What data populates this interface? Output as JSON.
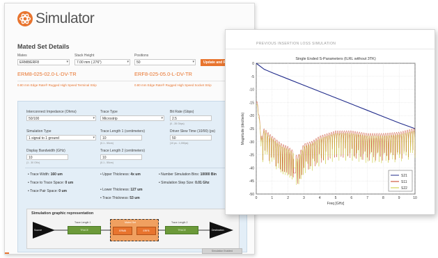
{
  "app": {
    "name": "Simulator",
    "brand_color": "#e8742e"
  },
  "form": {
    "section_title": "Mated Set Details",
    "mates_label": "Mates",
    "mates_value": "ERM8/ERF8",
    "stack_label": "Stack Height",
    "stack_value": "7.00 mm (.276\")",
    "positions_label": "Positions",
    "positions_value": "50",
    "action_label": "Update and Rese",
    "part_left": "ERM8-025-02.0-L-DV-TR",
    "part_right": "ERF8-025-05.0-L-DV-TR",
    "desc_left": "0.80 mm Edge Rate® Rugged High Speed Terminal Strip",
    "desc_right": "0.80 mm Edge Rate® Rugged High Speed Socket Strip"
  },
  "params": {
    "impedance_label": "Interconnect Impedance (Ohms)",
    "impedance_value": "50/100",
    "trace_type_label": "Trace Type",
    "trace_type_value": "Microstrip",
    "bit_rate_label": "Bit Rate (Gbps)",
    "bit_rate_value": "2.5",
    "bit_rate_hint": "(0 - 28 Gbps)",
    "sim_type_label": "Simulation Type",
    "sim_type_value": "1 signal to 1 ground",
    "trace_len1_label": "Trace Length 1 (centimeters)",
    "trace_len1_value": "10",
    "trace_len1_hint": "(0.1 - 50cm)",
    "driver_label": "Driver Slew Time (10/90) (ps)",
    "driver_value": "50",
    "driver_hint": "(10 ps - 1,000ps)",
    "bandwidth_label": "Display Bandwidth (GHz)",
    "bandwidth_value": "10",
    "bandwidth_hint": "(1 - 30 GHz)",
    "trace_len2_label": "Trace Length 2 (centimeters)",
    "trace_len2_value": "10",
    "trace_len2_hint": "(0.1 - 50cm)"
  },
  "stats": {
    "trace_width_label": "Trace Width:",
    "trace_width_value": "160 um",
    "trace_to_trace_label": "Trace to Trace Space:",
    "trace_to_trace_value": "0 um",
    "trace_pair_label": "Trace Pair Space:",
    "trace_pair_value": "0 um",
    "upper_label": "Upper Thickness:",
    "upper_value": "4x um",
    "lower_label": "Lower Thickness:",
    "lower_value": "127 um",
    "trace_thick_label": "Trace Thickness:",
    "trace_thick_value": "53 um",
    "sim_bins_label": "Number Simulation Bins:",
    "sim_bins_value": "10000 Bin",
    "step_label": "Simulation Step Size:",
    "step_value": "0.01 Ghz"
  },
  "graphic": {
    "title": "Simulation graphic representation",
    "source_label": "Source",
    "dest_label": "Destination",
    "trace1_label": "Trace Length 1",
    "trace2_label": "Trace Length 2",
    "trace1_box": "TRACE",
    "trace2_box": "TRACE",
    "center_label": "Mated Set",
    "erm_box": "ERM8",
    "erf_box": "ERF8",
    "button_label": "Simulation Enabled"
  },
  "chart_window": {
    "header": "PREVIOUS INSERTION LOSS SIMULATION"
  },
  "chart_data": {
    "type": "line",
    "title": "Single Ended S-Parameters (ILRL without 3TK)",
    "xlabel": "Freq [GHz]",
    "ylabel": "Magnitude (decibels)",
    "xlim": [
      0,
      10
    ],
    "ylim": [
      -50,
      0
    ],
    "xticks": [
      "0",
      "1",
      "2",
      "3",
      "4",
      "5",
      "6",
      "7",
      "8",
      "9",
      "10"
    ],
    "yticks": [
      "0",
      "-5",
      "-10",
      "-15",
      "-20",
      "-25",
      "-30",
      "-35",
      "-40",
      "-45",
      "-50"
    ],
    "grid": true,
    "legend_position": "bottom-right",
    "series": [
      {
        "name": "S21",
        "color": "#1f2a8a",
        "description": "insertion loss",
        "x": [
          0,
          0.5,
          1,
          2,
          3,
          4,
          5,
          6,
          7,
          8,
          9,
          10
        ],
        "y": [
          0,
          -2.3,
          -3.6,
          -6.0,
          -8.4,
          -10.8,
          -13.2,
          -15.6,
          -18.0,
          -20.4,
          -22.8,
          -25.0
        ]
      },
      {
        "name": "S11",
        "color": "#c43a1a",
        "x": [
          0,
          0.15,
          0.3,
          0.5,
          0.8,
          1.2,
          1.6,
          2.0,
          2.4,
          2.6,
          3.0,
          3.5,
          4.0,
          5.0,
          6.0,
          7.0,
          8.0,
          9.0,
          10.0
        ],
        "y": [
          -14,
          -19,
          -28,
          -24,
          -26,
          -28,
          -30,
          -31,
          -33,
          -35,
          -30,
          -29,
          -27,
          -25,
          -25,
          -26,
          -26,
          -25.5,
          -24
        ]
      },
      {
        "name": "S22",
        "color": "#c8c830",
        "x": [
          0,
          0.15,
          0.3,
          0.5,
          0.8,
          1.2,
          1.6,
          2.0,
          2.4,
          2.6,
          3.0,
          3.5,
          4.0,
          5.0,
          6.0,
          7.0,
          8.0,
          9.0,
          10.0
        ],
        "y": [
          -15,
          -20,
          -29,
          -25,
          -27,
          -29,
          -31,
          -32,
          -34,
          -36,
          -31,
          -30,
          -28,
          -26,
          -26,
          -27,
          -27,
          -26.5,
          -25
        ]
      }
    ]
  }
}
